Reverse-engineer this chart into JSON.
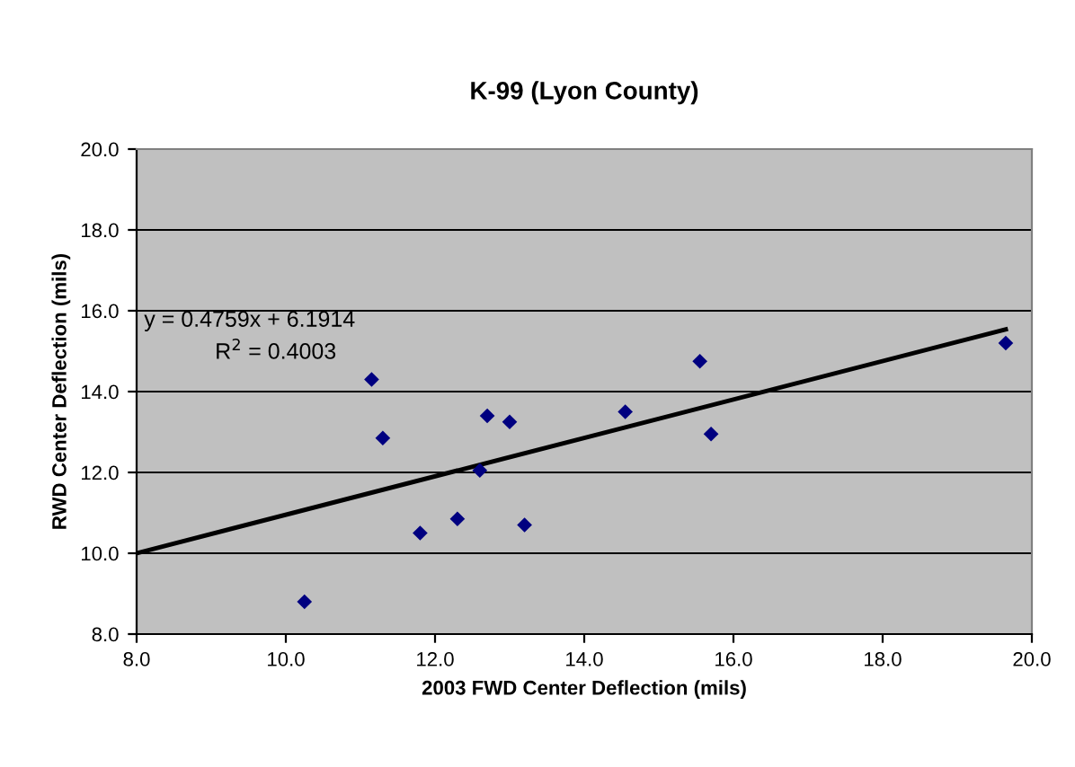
{
  "chart_data": {
    "type": "scatter",
    "title": "K-99 (Lyon County)",
    "xlabel": "2003 FWD Center Deflection (mils)",
    "ylabel": "RWD Center Deflection (mils)",
    "series": [
      {
        "color": "#000080",
        "marker": "diamond",
        "x": [
          10.25,
          11.15,
          11.3,
          11.8,
          12.3,
          12.6,
          12.7,
          13.0,
          13.2,
          14.55,
          15.55,
          15.7,
          19.65
        ],
        "values": [
          8.8,
          14.3,
          12.85,
          10.5,
          10.85,
          12.05,
          13.4,
          13.25,
          10.7,
          13.5,
          14.75,
          12.95,
          15.2
        ]
      },
      {
        "type": "line",
        "color": "#000000",
        "marker": "none",
        "x": [
          8.0,
          19.65
        ],
        "values": [
          10.0,
          15.54
        ]
      }
    ],
    "annotations": [
      "y = 0.4759x + 6.1914",
      "R$^{2}$ = 0.4003"
    ],
    "xlim": [
      8.0,
      20.0
    ],
    "xticks": [
      {
        "value": 8,
        "label": "8.0"
      },
      {
        "value": 10,
        "label": "10.0"
      },
      {
        "value": 12,
        "label": "12.0"
      },
      {
        "value": 14,
        "label": "14.0"
      },
      {
        "value": 16,
        "label": "16.0"
      },
      {
        "value": 18,
        "label": "18.0"
      },
      {
        "value": 20,
        "label": "20.0"
      }
    ],
    "ylim": [
      8.0,
      20.0
    ],
    "yticks": [
      {
        "value": 8,
        "label": "8.0"
      },
      {
        "value": 10,
        "label": "10.0"
      },
      {
        "value": 12,
        "label": "12.0"
      },
      {
        "value": 14,
        "label": "14.0"
      },
      {
        "value": 16,
        "label": "16.0"
      },
      {
        "value": 18,
        "label": "18.0"
      },
      {
        "value": 20,
        "label": "20.0"
      }
    ],
    "grid": "y",
    "legend": false
  }
}
